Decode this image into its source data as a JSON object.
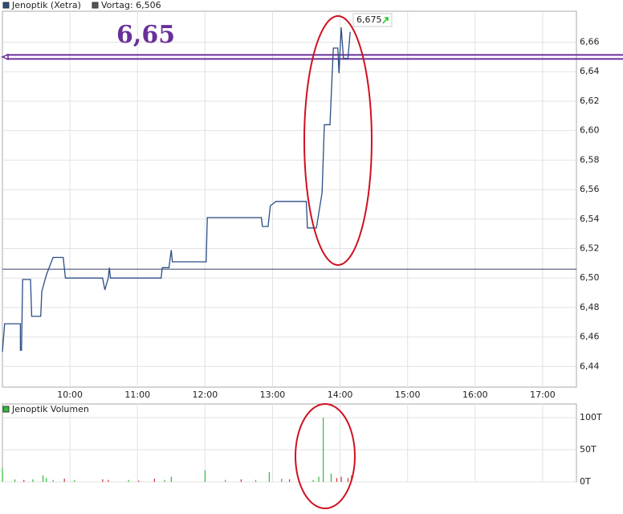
{
  "chart_data": {
    "type": "line",
    "series": [
      {
        "name": "Jenoptik (Xetra)",
        "color": "#2b4d85",
        "values": [
          6.45,
          6.469,
          6.469,
          6.451,
          6.451,
          6.499,
          6.499,
          6.474,
          6.474,
          6.491,
          6.502,
          6.514,
          6.514,
          6.5,
          6.5,
          6.492,
          6.5,
          6.507,
          6.5,
          6.5,
          6.507,
          6.507,
          6.519,
          6.511,
          6.511,
          6.541,
          6.541,
          6.535,
          6.535,
          6.549,
          6.552,
          6.552,
          6.534,
          6.534,
          6.558,
          6.604,
          6.604,
          6.639,
          6.656,
          6.656,
          6.639,
          6.67,
          6.649,
          6.649,
          6.667
        ]
      }
    ],
    "x": [
      540,
      542,
      556,
      556,
      557,
      558,
      565,
      566,
      574,
      575,
      579,
      585,
      594,
      596,
      629,
      631,
      634,
      635,
      636,
      681,
      682,
      688,
      690,
      691,
      721,
      722,
      770,
      771,
      776,
      778,
      783,
      810,
      811,
      819,
      824,
      826,
      831,
      833,
      834,
      838,
      839,
      841,
      843,
      847,
      849
    ],
    "xlim": [
      540,
      1050
    ],
    "xticks": [
      {
        "value": 600,
        "label": "10:00"
      },
      {
        "value": 660,
        "label": "11:00"
      },
      {
        "value": 720,
        "label": "12:00"
      },
      {
        "value": 780,
        "label": "13:00"
      },
      {
        "value": 840,
        "label": "14:00"
      },
      {
        "value": 900,
        "label": "15:00"
      },
      {
        "value": 960,
        "label": "16:00"
      },
      {
        "value": 1020,
        "label": "17:00"
      }
    ],
    "ylim": [
      6.426,
      6.681
    ],
    "yticks": [
      {
        "value": 6.44,
        "label": "6,44"
      },
      {
        "value": 6.46,
        "label": "6,46"
      },
      {
        "value": 6.48,
        "label": "6,48"
      },
      {
        "value": 6.5,
        "label": "6,50"
      },
      {
        "value": 6.52,
        "label": "6,52"
      },
      {
        "value": 6.54,
        "label": "6,54"
      },
      {
        "value": 6.56,
        "label": "6,56"
      },
      {
        "value": 6.58,
        "label": "6,58"
      },
      {
        "value": 6.6,
        "label": "6,60"
      },
      {
        "value": 6.62,
        "label": "6,62"
      },
      {
        "value": 6.64,
        "label": "6,64"
      },
      {
        "value": 6.66,
        "label": "6,66"
      }
    ],
    "grid": true,
    "reference_line": {
      "value": 6.506,
      "label": "Vortag: 6,506",
      "color": "#4a5770"
    },
    "annotation": {
      "value": 6.65,
      "label": "6,65",
      "color": "#6a2f9a"
    },
    "last_price": {
      "value": 6.675,
      "label": "6,675"
    },
    "volume": {
      "type": "bar",
      "title": "Jenoptik Volumen",
      "color": "#33bb33",
      "x": [
        540,
        551,
        559,
        567,
        576,
        579,
        585,
        595,
        604,
        629,
        634,
        652,
        661,
        675,
        684,
        690,
        720,
        738,
        752,
        765,
        777,
        788,
        795,
        816,
        821,
        825,
        832,
        837,
        841,
        847,
        850
      ],
      "values": [
        22000,
        4000,
        3000,
        4000,
        10000,
        6000,
        3000,
        5000,
        3000,
        4000,
        3000,
        3000,
        2000,
        5000,
        3000,
        8000,
        18000,
        3000,
        4000,
        3000,
        15000,
        5000,
        4000,
        3000,
        8000,
        100000,
        13000,
        6000,
        8000,
        6000,
        10000
      ],
      "colors": [
        "#33bb33",
        "#33bb33",
        "#cc3333",
        "#33bb33",
        "#33bb33",
        "#33bb33",
        "#33bb33",
        "#cc3333",
        "#33bb33",
        "#cc3333",
        "#cc3333",
        "#33bb33",
        "#cc3333",
        "#cc3333",
        "#33bb33",
        "#33bb33",
        "#33bb33",
        "#33bb33",
        "#cc3333",
        "#33bb33",
        "#33bb33",
        "#33bb33",
        "#cc3333",
        "#33bb33",
        "#33bb33",
        "#33bb33",
        "#33bb33",
        "#cc3333",
        "#cc3333",
        "#cc3333",
        "#33bb33"
      ],
      "ylim": [
        0,
        100000
      ],
      "yticks": [
        {
          "value": 0,
          "label": "0T"
        },
        {
          "value": 50000,
          "label": "50T"
        },
        {
          "value": 100000,
          "label": "100T"
        }
      ]
    }
  }
}
